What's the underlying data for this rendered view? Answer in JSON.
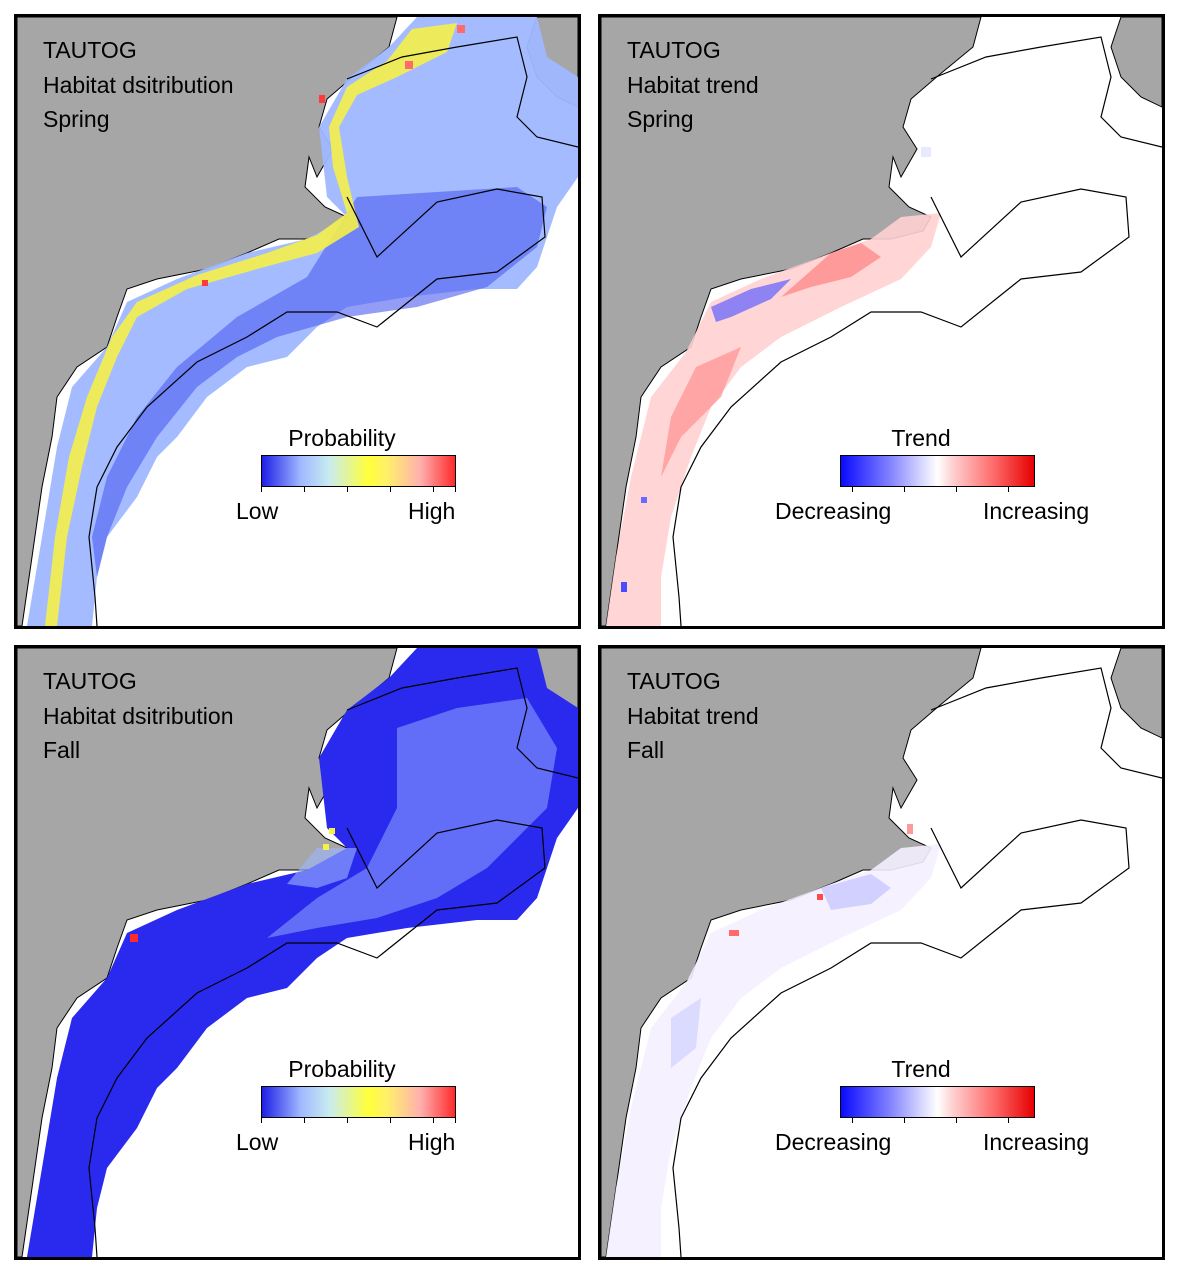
{
  "panels": [
    {
      "id": "spring-distribution",
      "species": "TAUTOG",
      "title": "Habitat dsitribution",
      "season": "Spring",
      "legend": {
        "title": "Probability",
        "low": "Low",
        "high": "High",
        "colors": [
          "#1f1fe6",
          "#9fb8ff",
          "#c9ecf0",
          "#ffff3a",
          "#fff06a",
          "#ffb0b0",
          "#ff2a2a"
        ]
      }
    },
    {
      "id": "spring-trend",
      "species": "TAUTOG",
      "title": "Habitat trend",
      "season": "Spring",
      "legend": {
        "title": "Trend",
        "low": "Decreasing",
        "high": "Increasing",
        "colors": [
          "#0a0aff",
          "#8080ff",
          "#d8d8ff",
          "#ffffff",
          "#ffd0d0",
          "#ff7070",
          "#e60000"
        ]
      }
    },
    {
      "id": "fall-distribution",
      "species": "TAUTOG",
      "title": "Habitat dsitribution",
      "season": "Fall",
      "legend": {
        "title": "Probability",
        "low": "Low",
        "high": "High",
        "colors": [
          "#1f1fe6",
          "#9fb8ff",
          "#c9ecf0",
          "#ffff3a",
          "#fff06a",
          "#ffb0b0",
          "#ff2a2a"
        ]
      }
    },
    {
      "id": "fall-trend",
      "species": "TAUTOG",
      "title": "Habitat trend",
      "season": "Fall",
      "legend": {
        "title": "Trend",
        "low": "Decreasing",
        "high": "Increasing",
        "colors": [
          "#0a0aff",
          "#8080ff",
          "#d8d8ff",
          "#ffffff",
          "#ffd0d0",
          "#ff7070",
          "#e60000"
        ]
      }
    }
  ],
  "colors": {
    "land": "#a6a6a6",
    "ocean": "#ffffff",
    "border": "#000000"
  }
}
